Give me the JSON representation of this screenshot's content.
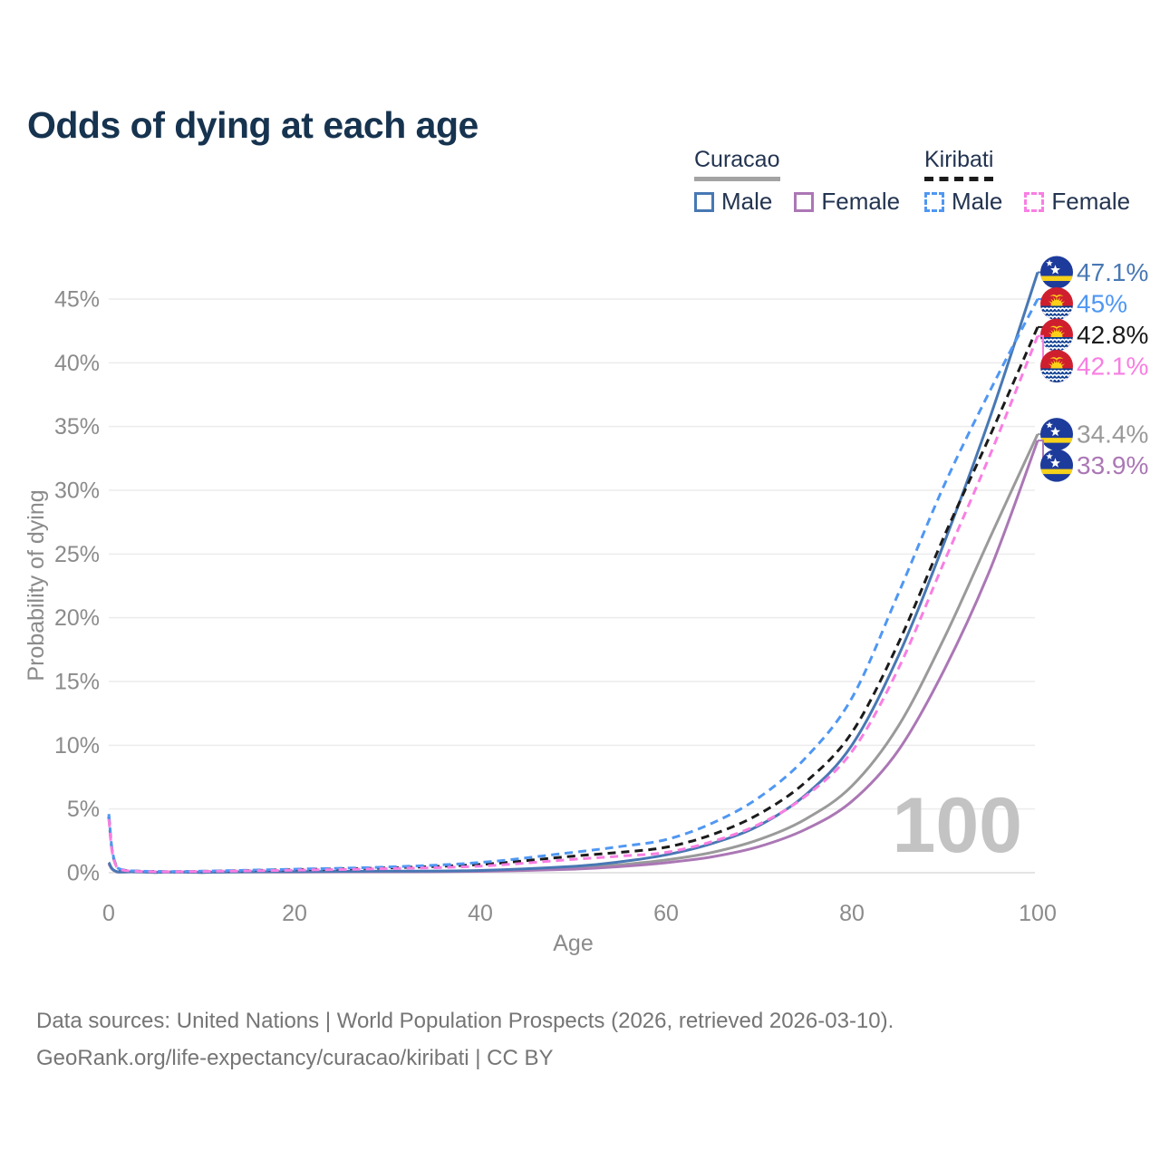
{
  "title": "Odds of dying at each age",
  "legend": {
    "groups": [
      {
        "country": "Curacao",
        "line_style": "solid",
        "line_color": "#a3a3a3",
        "items": [
          {
            "label": "Male",
            "color": "#4878b4",
            "line_style": "solid"
          },
          {
            "label": "Female",
            "color": "#ab77b5",
            "line_style": "solid"
          }
        ]
      },
      {
        "country": "Kiribati",
        "line_style": "dashed",
        "line_color": "#1b1b1b",
        "items": [
          {
            "label": "Male",
            "color": "#4f97f3",
            "line_style": "dashed"
          },
          {
            "label": "Female",
            "color": "#f97ee2",
            "line_style": "dashed"
          }
        ]
      }
    ]
  },
  "chart_data": {
    "type": "line",
    "title": "Odds of dying at each age",
    "x_label": "Age",
    "y_label": "Probability of dying",
    "x_ticks": [
      0,
      20,
      40,
      60,
      80,
      100
    ],
    "y_tick_labels": [
      "0%",
      "5%",
      "10%",
      "15%",
      "20%",
      "25%",
      "30%",
      "35%",
      "40%",
      "45%"
    ],
    "x_range": [
      0,
      100
    ],
    "y_range_percent": [
      0,
      47.5
    ],
    "grid": "horizontal",
    "legend_position": "top-right",
    "hover_age_label": "100",
    "ages": [
      0,
      1,
      5,
      10,
      20,
      30,
      40,
      50,
      55,
      60,
      65,
      70,
      75,
      80,
      85,
      90,
      95,
      100
    ],
    "series": [
      {
        "name": "Curacao",
        "flag": "curacao",
        "color": "#9a9a9a",
        "line_style": "solid",
        "end_label": "34.4%",
        "values_percent": [
          0.75,
          0.055,
          0.025,
          0.025,
          0.07,
          0.09,
          0.14,
          0.38,
          0.62,
          1.0,
          1.6,
          2.6,
          4.2,
          6.8,
          11.5,
          18.5,
          26.5,
          34.4
        ]
      },
      {
        "name": "Curacao Female",
        "flag": "curacao",
        "color": "#ab77b5",
        "line_style": "solid",
        "end_label": "33.9%",
        "values_percent": [
          0.7,
          0.05,
          0.02,
          0.02,
          0.05,
          0.07,
          0.11,
          0.28,
          0.48,
          0.78,
          1.25,
          2.05,
          3.4,
          5.6,
          9.6,
          16.0,
          24.0,
          33.9
        ]
      },
      {
        "name": "Curacao Male",
        "flag": "curacao",
        "color": "#4878b4",
        "line_style": "solid",
        "end_label": "47.1%",
        "values_percent": [
          0.8,
          0.06,
          0.03,
          0.03,
          0.09,
          0.12,
          0.18,
          0.5,
          0.85,
          1.4,
          2.3,
          3.7,
          6.1,
          10.0,
          17.0,
          26.0,
          36.0,
          47.1
        ]
      },
      {
        "name": "Kiribati",
        "flag": "kiribati",
        "color": "#1b1b1b",
        "line_style": "dashed",
        "end_label": "42.8%",
        "values_percent": [
          4.4,
          0.32,
          0.09,
          0.11,
          0.24,
          0.38,
          0.65,
          1.3,
          1.6,
          2.0,
          3.0,
          4.6,
          7.1,
          11.0,
          18.0,
          26.5,
          34.5,
          42.8
        ]
      },
      {
        "name": "Kiribati Male",
        "flag": "kiribati",
        "color": "#4f97f3",
        "line_style": "dashed",
        "end_label": "45%",
        "values_percent": [
          4.6,
          0.35,
          0.1,
          0.12,
          0.28,
          0.45,
          0.8,
          1.6,
          2.05,
          2.6,
          3.9,
          5.9,
          9.0,
          13.7,
          21.9,
          30.5,
          38.0,
          45.0
        ]
      },
      {
        "name": "Kiribati Female",
        "flag": "kiribati",
        "color": "#f97ee2",
        "line_style": "dashed",
        "end_label": "42.1%",
        "values_percent": [
          4.2,
          0.3,
          0.08,
          0.1,
          0.2,
          0.32,
          0.52,
          1.05,
          1.3,
          1.6,
          2.45,
          3.8,
          6.0,
          9.5,
          16.0,
          24.5,
          33.0,
          42.1
        ]
      }
    ]
  },
  "footer": {
    "line1": "Data sources: United Nations | World Population Prospects (2026, retrieved 2026-03-10).",
    "line2": "GeoRank.org/life-expectancy/curacao/kiribati | CC BY"
  },
  "colors": {
    "title": "#16334f",
    "legend_text": "#233450",
    "axis_text": "#8b8b8b",
    "grid": "#ececec",
    "baseline": "#e4e4e4",
    "watermark": "#c3c3c3",
    "footer": "#757575",
    "background": "#ffffff",
    "flag_curacao_blue": "#1d3b9b",
    "flag_curacao_yellow": "#f6d21b",
    "flag_kiribati_red": "#cf1f2f",
    "flag_kiribati_blue": "#0b3d91",
    "flag_kiribati_yellow": "#fdd017"
  }
}
